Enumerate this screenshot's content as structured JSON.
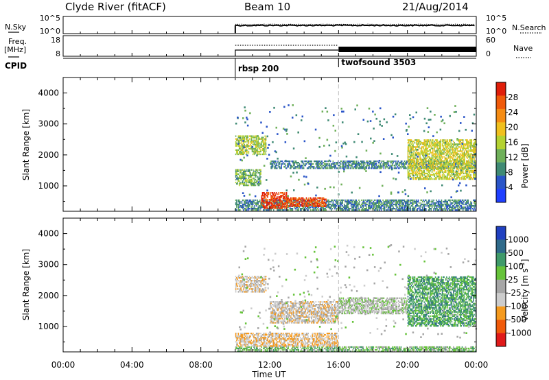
{
  "header": {
    "station": "Clyde River (fitACF)",
    "beam": "Beam 10",
    "date": "21/Aug/2014"
  },
  "panels": {
    "nsky_label": "N.Sky",
    "nsearch_label": "N.Search",
    "freq_label_1": "Freq.",
    "freq_label_2": "[MHz]",
    "nave_label": "Nave",
    "cpid_label": "CPID",
    "nsky_ticks": [
      "10^5",
      "10^0"
    ],
    "nsearch_ticks": [
      "10^5",
      "10^0"
    ],
    "freq_ticks": [
      "18",
      "8"
    ],
    "nave_ticks": [
      "60",
      "0"
    ],
    "programs": [
      {
        "name": "rbsp 200",
        "start": "10:00"
      },
      {
        "name": "twofsound 3503",
        "start": "16:00"
      }
    ]
  },
  "axes": {
    "ylabel": "Slant Range [km]",
    "xlabel": "Time UT"
  },
  "colorbars": {
    "power": {
      "label": "Power [dB]",
      "ticks": [
        "28",
        "24",
        "20",
        "16",
        "12",
        "8",
        "4"
      ]
    },
    "velocity": {
      "label": "Velocity [m s",
      "label_sup": "-1",
      "label_end": "]",
      "ticks": [
        "1000",
        "500",
        "100",
        "25",
        "-25",
        "-100",
        "-500",
        "-1000"
      ]
    }
  },
  "chart_data": [
    {
      "type": "heatmap",
      "title": "Power",
      "xlabel": "Time UT",
      "ylabel": "Slant Range [km]",
      "xlim": [
        "00:00",
        "24:00"
      ],
      "x_ticks": [
        "00:00",
        "04:00",
        "08:00",
        "12:00",
        "16:00",
        "20:00",
        "00:00"
      ],
      "ylim": [
        180,
        4500
      ],
      "y_ticks": [
        1000,
        2000,
        3000,
        4000
      ],
      "colorscale": {
        "label": "Power [dB]",
        "range": [
          0,
          30
        ],
        "colors": [
          "#1f3fff",
          "#2a55c8",
          "#3f8a74",
          "#6fb05a",
          "#b4d232",
          "#f0c01e",
          "#f58c14",
          "#f05a0a",
          "#e01e0a"
        ]
      },
      "data_start_hour": 10.0,
      "program_boundary_hour": 16.0,
      "regions": [
        {
          "t": [
            10.0,
            24.0
          ],
          "r": [
            200,
            520
          ],
          "value_db": 8
        },
        {
          "t": [
            11.5,
            13.0
          ],
          "r": [
            260,
            760
          ],
          "value_db": 27
        },
        {
          "t": [
            13.0,
            15.3
          ],
          "r": [
            320,
            620
          ],
          "value_db": 26
        },
        {
          "t": [
            10.0,
            11.5
          ],
          "r": [
            1000,
            1500
          ],
          "value_db": 12
        },
        {
          "t": [
            10.0,
            11.8
          ],
          "r": [
            2000,
            2600
          ],
          "value_db": 14
        },
        {
          "t": [
            12.0,
            24.0
          ],
          "r": [
            1550,
            1800
          ],
          "value_db": 8
        },
        {
          "t": [
            20.0,
            24.0
          ],
          "r": [
            1200,
            2500
          ],
          "value_db": 16
        }
      ]
    },
    {
      "type": "heatmap",
      "title": "Velocity",
      "xlabel": "Time UT",
      "ylabel": "Slant Range [km]",
      "xlim": [
        "00:00",
        "24:00"
      ],
      "x_ticks": [
        "00:00",
        "04:00",
        "08:00",
        "12:00",
        "16:00",
        "20:00",
        "00:00"
      ],
      "ylim": [
        180,
        4500
      ],
      "y_ticks": [
        1000,
        2000,
        3000,
        4000
      ],
      "colorscale": {
        "label": "Velocity [m s-1]",
        "range": [
          -1000,
          1000
        ],
        "colors": [
          "#e01a1a",
          "#f05a0a",
          "#f59a1e",
          "#cccccc",
          "#a6a6a6",
          "#66c33a",
          "#3f9a6a",
          "#2f6a8a",
          "#2040c0"
        ]
      },
      "regions": [
        {
          "t": [
            10.0,
            24.0
          ],
          "r": [
            180,
            350
          ],
          "value_ms": 200
        },
        {
          "t": [
            10.0,
            16.0
          ],
          "r": [
            350,
            800
          ],
          "value_ms": -300
        },
        {
          "t": [
            10.0,
            11.8
          ],
          "r": [
            2100,
            2600
          ],
          "value_ms": -200
        },
        {
          "t": [
            12.0,
            16.0
          ],
          "r": [
            1100,
            1800
          ],
          "value_ms": -200
        },
        {
          "t": [
            16.0,
            20.0
          ],
          "r": [
            1400,
            1900
          ],
          "value_ms": 0
        },
        {
          "t": [
            20.0,
            24.0
          ],
          "r": [
            1000,
            2600
          ],
          "value_ms": 400
        }
      ]
    }
  ]
}
